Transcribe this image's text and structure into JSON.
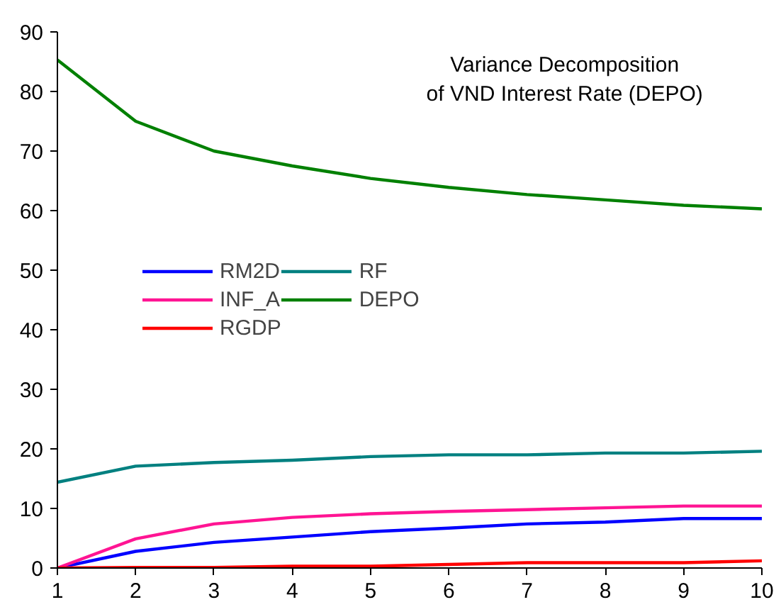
{
  "chart_data": {
    "type": "line",
    "title": "Variance Decomposition\nof VND Interest Rate (DEPO)",
    "x": [
      1,
      2,
      3,
      4,
      5,
      6,
      7,
      8,
      9,
      10
    ],
    "series": [
      {
        "name": "RM2D",
        "color": "#0000ff",
        "values": [
          0,
          2.8,
          4.3,
          5.2,
          6.1,
          6.7,
          7.4,
          7.7,
          8.3,
          8.3
        ]
      },
      {
        "name": "INF_A",
        "color": "#ff1493",
        "values": [
          0,
          4.9,
          7.4,
          8.5,
          9.1,
          9.5,
          9.8,
          10.1,
          10.4,
          10.4
        ]
      },
      {
        "name": "RGDP",
        "color": "#ff0000",
        "values": [
          0,
          0.1,
          0.1,
          0.3,
          0.3,
          0.6,
          0.9,
          0.9,
          0.9,
          1.2
        ]
      },
      {
        "name": "RF",
        "color": "#008080",
        "values": [
          14.4,
          17.1,
          17.7,
          18.1,
          18.7,
          19.0,
          19.0,
          19.3,
          19.3,
          19.6
        ]
      },
      {
        "name": "DEPO",
        "color": "#008000",
        "values": [
          85.3,
          75,
          70,
          67.5,
          65.4,
          63.9,
          62.7,
          61.8,
          60.9,
          60.3
        ]
      }
    ],
    "xlim": [
      1,
      10
    ],
    "xticks": [
      1,
      2,
      3,
      4,
      5,
      6,
      7,
      8,
      9,
      10
    ],
    "ylim": [
      0,
      90
    ],
    "yticks": [
      0,
      10,
      20,
      30,
      40,
      50,
      60,
      70,
      80,
      90
    ],
    "grid": false,
    "legend": "left",
    "line_style": "solid"
  }
}
